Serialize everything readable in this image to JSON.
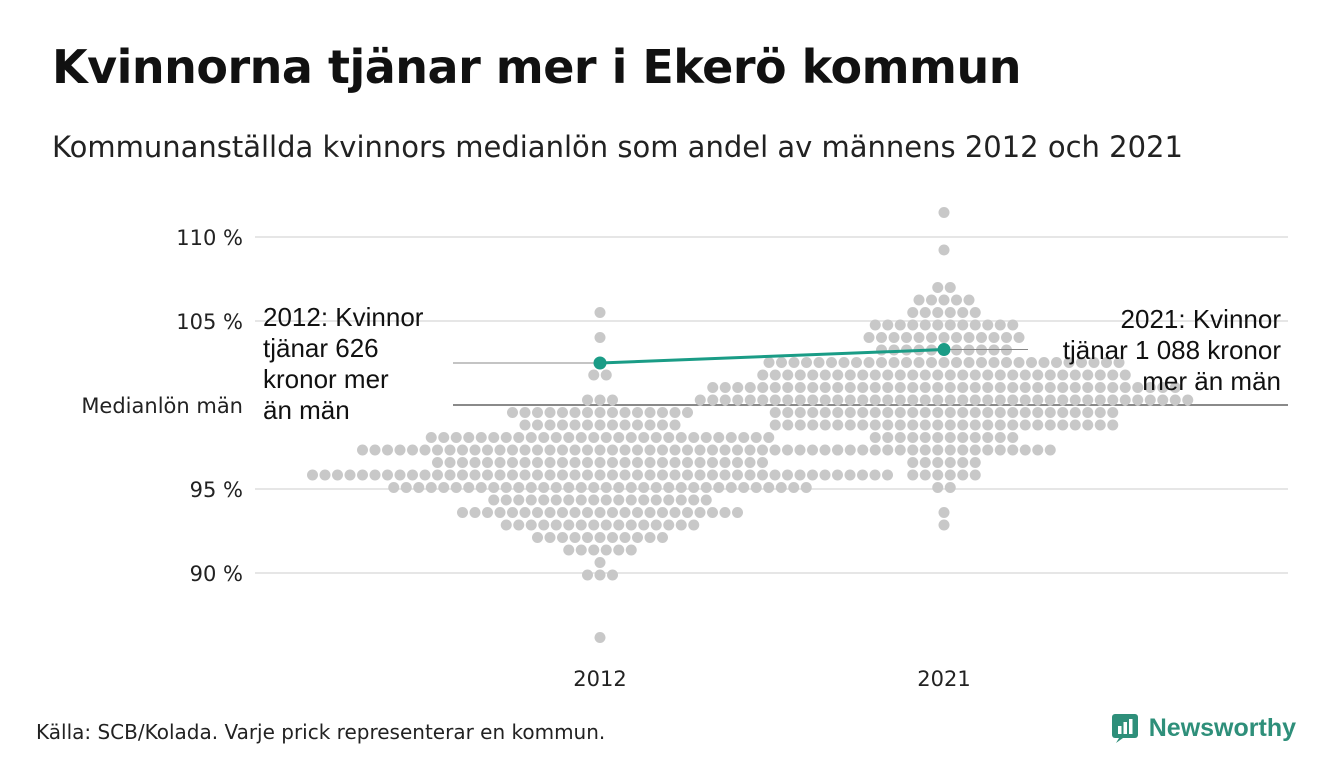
{
  "colors": {
    "dot": "#c8c8c8",
    "line": "#1a9c86",
    "grid": "#dedede",
    "reference": "#555555",
    "brand": "#2e8f7a"
  },
  "header": {
    "title": "Kvinnorna tjänar mer i Ekerö kommun",
    "subtitle": "Kommunanställda kvinnors medianlön som andel av männens 2012 och 2021"
  },
  "footer": {
    "source": "Källa: SCB/Kolada. Varje prick representerar en kommun.",
    "brand": "Newsworthy"
  },
  "chart_data": {
    "type": "scatter",
    "title": "Kvinnorna tjänar mer i Ekerö kommun",
    "subtitle": "Kommunanställda kvinnors medianlön som andel av männens 2012 och 2021",
    "categories": [
      "2012",
      "2021"
    ],
    "ylim": [
      86,
      112
    ],
    "y_ticks": [
      {
        "value": 90,
        "label": "90 %"
      },
      {
        "value": 95,
        "label": "95 %"
      },
      {
        "value": 100,
        "label": "Medianlön män"
      },
      {
        "value": 105,
        "label": "105 %"
      },
      {
        "value": 110,
        "label": "110 %"
      }
    ],
    "reference_line": {
      "value": 100,
      "label": "Medianlön män"
    },
    "distributions": [
      {
        "category": "2012",
        "median": 96.0,
        "sd": 2.2,
        "min": 86.0,
        "max": 105.3,
        "count": 290
      },
      {
        "category": "2021",
        "median": 100.8,
        "sd": 2.5,
        "min": 92.6,
        "max": 111.4,
        "count": 290
      }
    ],
    "highlight": {
      "name": "Ekerö",
      "points": [
        {
          "x": "2012",
          "y": 102.5
        },
        {
          "x": "2021",
          "y": 103.3
        }
      ]
    },
    "annotations": [
      {
        "x": "2012",
        "lines": [
          "2012: Kvinnor",
          "tjänar 626",
          "kronor mer",
          "än män"
        ]
      },
      {
        "x": "2021",
        "lines": [
          "2021: Kvinnor",
          "tjänar 1 088 kronor",
          "mer än män"
        ]
      }
    ],
    "grid": true
  }
}
